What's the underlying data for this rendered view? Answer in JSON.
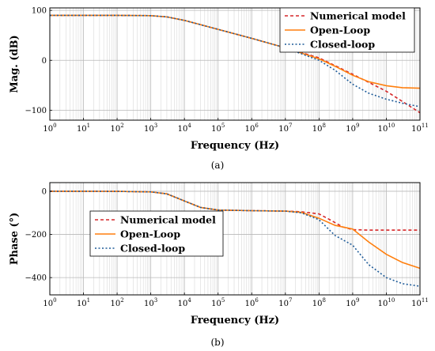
{
  "chart_data": [
    {
      "type": "line",
      "caption": "(a)",
      "xlabel": "Frequency (Hz)",
      "ylabel": "Mag. (dB)",
      "xscale": "log",
      "xlim": [
        1,
        100000000000
      ],
      "ylim": [
        -120,
        105
      ],
      "xticks": [
        {
          "base": "10",
          "exp": "0"
        },
        {
          "base": "10",
          "exp": "1"
        },
        {
          "base": "10",
          "exp": "2"
        },
        {
          "base": "10",
          "exp": "3"
        },
        {
          "base": "10",
          "exp": "4"
        },
        {
          "base": "10",
          "exp": "5"
        },
        {
          "base": "10",
          "exp": "6"
        },
        {
          "base": "10",
          "exp": "7"
        },
        {
          "base": "10",
          "exp": "8"
        },
        {
          "base": "10",
          "exp": "9"
        },
        {
          "base": "10",
          "exp": "10"
        },
        {
          "base": "10",
          "exp": "11"
        }
      ],
      "yticks": [
        {
          "value": 100,
          "label": "100"
        },
        {
          "value": 0,
          "label": "0"
        },
        {
          "value": -100,
          "label": "−100"
        }
      ],
      "grid": true,
      "legend_position": "top-right",
      "series": [
        {
          "name": "Numerical model",
          "color": "#d62728",
          "style": "dashed",
          "x": [
            1,
            10,
            100,
            1000,
            3000,
            10000,
            100000,
            1000000,
            10000000,
            100000000,
            1000000000,
            10000000000,
            100000000000
          ],
          "y": [
            90,
            90,
            90,
            89.5,
            87,
            80,
            62,
            44,
            25,
            5,
            -28,
            -62,
            -105
          ]
        },
        {
          "name": "Open-Loop",
          "color": "#ff7f0e",
          "style": "solid",
          "x": [
            1,
            10,
            100,
            1000,
            3000,
            10000,
            100000,
            1000000,
            10000000,
            100000000,
            300000000,
            1000000000,
            3000000000,
            10000000000,
            30000000000,
            100000000000
          ],
          "y": [
            90,
            90,
            90,
            89.5,
            87,
            80,
            62,
            44,
            25,
            3,
            -12,
            -30,
            -43,
            -51,
            -55,
            -56
          ]
        },
        {
          "name": "Closed-loop",
          "color": "#1f5c99",
          "style": "dotted",
          "x": [
            1,
            10,
            100,
            1000,
            3000,
            10000,
            100000,
            1000000,
            10000000,
            100000000,
            300000000,
            1000000000,
            3000000000,
            10000000000,
            30000000000,
            100000000000
          ],
          "y": [
            90,
            90,
            90,
            89.5,
            87,
            80,
            62,
            44,
            25,
            0,
            -20,
            -48,
            -66,
            -78,
            -86,
            -93
          ]
        }
      ]
    },
    {
      "type": "line",
      "caption": "(b)",
      "xlabel": "Frequency (Hz)",
      "ylabel": "Phase (°)",
      "xscale": "log",
      "xlim": [
        1,
        100000000000
      ],
      "ylim": [
        -480,
        40
      ],
      "xticks": [
        {
          "base": "10",
          "exp": "0"
        },
        {
          "base": "10",
          "exp": "1"
        },
        {
          "base": "10",
          "exp": "2"
        },
        {
          "base": "10",
          "exp": "3"
        },
        {
          "base": "10",
          "exp": "4"
        },
        {
          "base": "10",
          "exp": "5"
        },
        {
          "base": "10",
          "exp": "6"
        },
        {
          "base": "10",
          "exp": "7"
        },
        {
          "base": "10",
          "exp": "8"
        },
        {
          "base": "10",
          "exp": "9"
        },
        {
          "base": "10",
          "exp": "10"
        },
        {
          "base": "10",
          "exp": "11"
        }
      ],
      "yticks": [
        {
          "value": 0,
          "label": "0"
        },
        {
          "value": -200,
          "label": "−200"
        },
        {
          "value": -400,
          "label": "−400"
        }
      ],
      "grid": true,
      "legend_position": "center-left",
      "series": [
        {
          "name": "Numerical model",
          "color": "#d62728",
          "style": "dashed",
          "x": [
            1,
            10,
            100,
            1000,
            3000,
            10000,
            30000,
            100000,
            1000000,
            10000000,
            30000000,
            100000000,
            200000000,
            500000000,
            1000000000,
            3000000000,
            10000000000,
            100000000000
          ],
          "y": [
            0,
            0,
            -0.5,
            -3,
            -12,
            -45,
            -75,
            -87,
            -90,
            -92,
            -95,
            -105,
            -130,
            -165,
            -178,
            -180,
            -180,
            -180
          ]
        },
        {
          "name": "Open-Loop",
          "color": "#ff7f0e",
          "style": "solid",
          "x": [
            1,
            10,
            100,
            1000,
            3000,
            10000,
            30000,
            100000,
            1000000,
            10000000,
            30000000,
            100000000,
            300000000,
            1000000000,
            3000000000,
            10000000000,
            30000000000,
            100000000000
          ],
          "y": [
            0,
            0,
            -0.5,
            -3,
            -12,
            -45,
            -75,
            -87,
            -90,
            -92,
            -98,
            -125,
            -158,
            -175,
            -235,
            -292,
            -330,
            -357
          ]
        },
        {
          "name": "Closed-loop",
          "color": "#1f5c99",
          "style": "dotted",
          "x": [
            1,
            10,
            100,
            1000,
            3000,
            10000,
            30000,
            100000,
            1000000,
            10000000,
            30000000,
            100000000,
            300000000,
            1000000000,
            3000000000,
            10000000000,
            30000000000,
            100000000000
          ],
          "y": [
            0,
            0,
            -0.5,
            -3,
            -12,
            -45,
            -75,
            -87,
            -90,
            -92,
            -100,
            -132,
            -205,
            -250,
            -340,
            -400,
            -428,
            -440
          ]
        }
      ]
    }
  ]
}
